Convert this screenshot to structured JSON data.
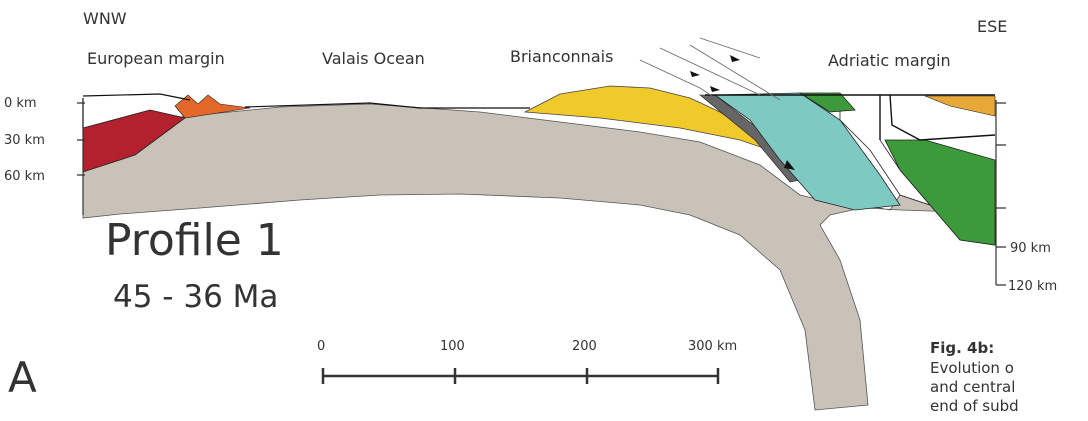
{
  "labels": {
    "west": "WNW",
    "east": "ESE",
    "european": "European margin",
    "valais": "Valais Ocean",
    "brianconnais": "Brianconnais",
    "adriatic": "Adriatic margin"
  },
  "depth_left": [
    "0 km",
    "30 km",
    "60 km"
  ],
  "depth_right": [
    "90 km",
    "120 km"
  ],
  "profile": {
    "title": "Profile 1",
    "age": "45 - 36   Ma",
    "panel": "A"
  },
  "scale": [
    "0",
    "100",
    "200",
    "300 km"
  ],
  "caption": {
    "title": "Fig. 4b:",
    "lines": [
      "Evolution o",
      "and central",
      "end of subd"
    ]
  }
}
